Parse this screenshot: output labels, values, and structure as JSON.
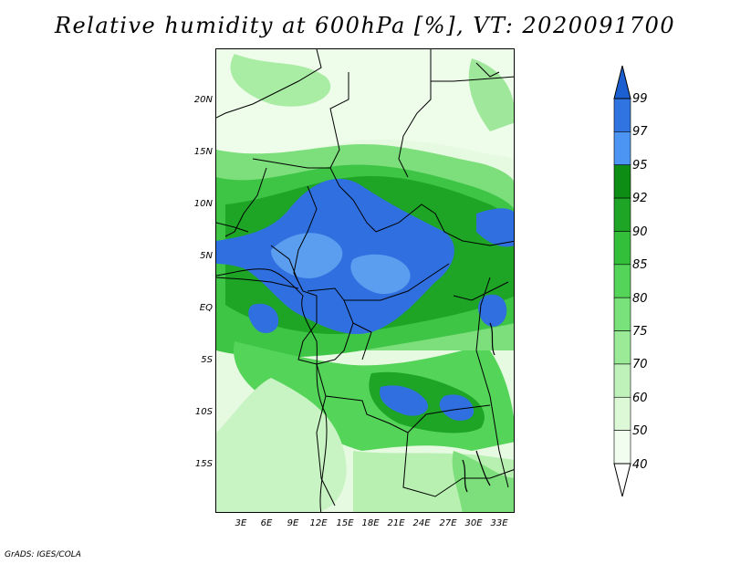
{
  "title": "Relative humidity at 600hPa [%], VT: 2020091700",
  "credit": "GrADS: IGES/COLA",
  "lat_labels": [
    "20N",
    "15N",
    "10N",
    "5N",
    "EQ",
    "5S",
    "10S",
    "15S"
  ],
  "lon_labels": [
    "3E",
    "6E",
    "9E",
    "12E",
    "15E",
    "18E",
    "21E",
    "24E",
    "27E",
    "30E",
    "33E"
  ],
  "colorbar": {
    "labels": [
      "99",
      "97",
      "95",
      "92",
      "90",
      "85",
      "80",
      "75",
      "70",
      "60",
      "50",
      "40"
    ],
    "colors": [
      "#1c5fd0",
      "#2f74e0",
      "#4c95f2",
      "#0e8d14",
      "#1ea526",
      "#34bf3b",
      "#55d45a",
      "#79e27a",
      "#9aea98",
      "#bff2ba",
      "#dcf8d7",
      "#f1fdee"
    ],
    "top_arrow_color": "#1c5fd0",
    "bottom_arrow_color": "#ffffff"
  },
  "colors": {
    "humid_blue": "#2f6fe0",
    "light_blue": "#5b9ef0",
    "dark_green": "#139a1c",
    "mid_green": "#3ec546",
    "light_green": "#9fe89b",
    "pale_green": "#e3f9de"
  }
}
